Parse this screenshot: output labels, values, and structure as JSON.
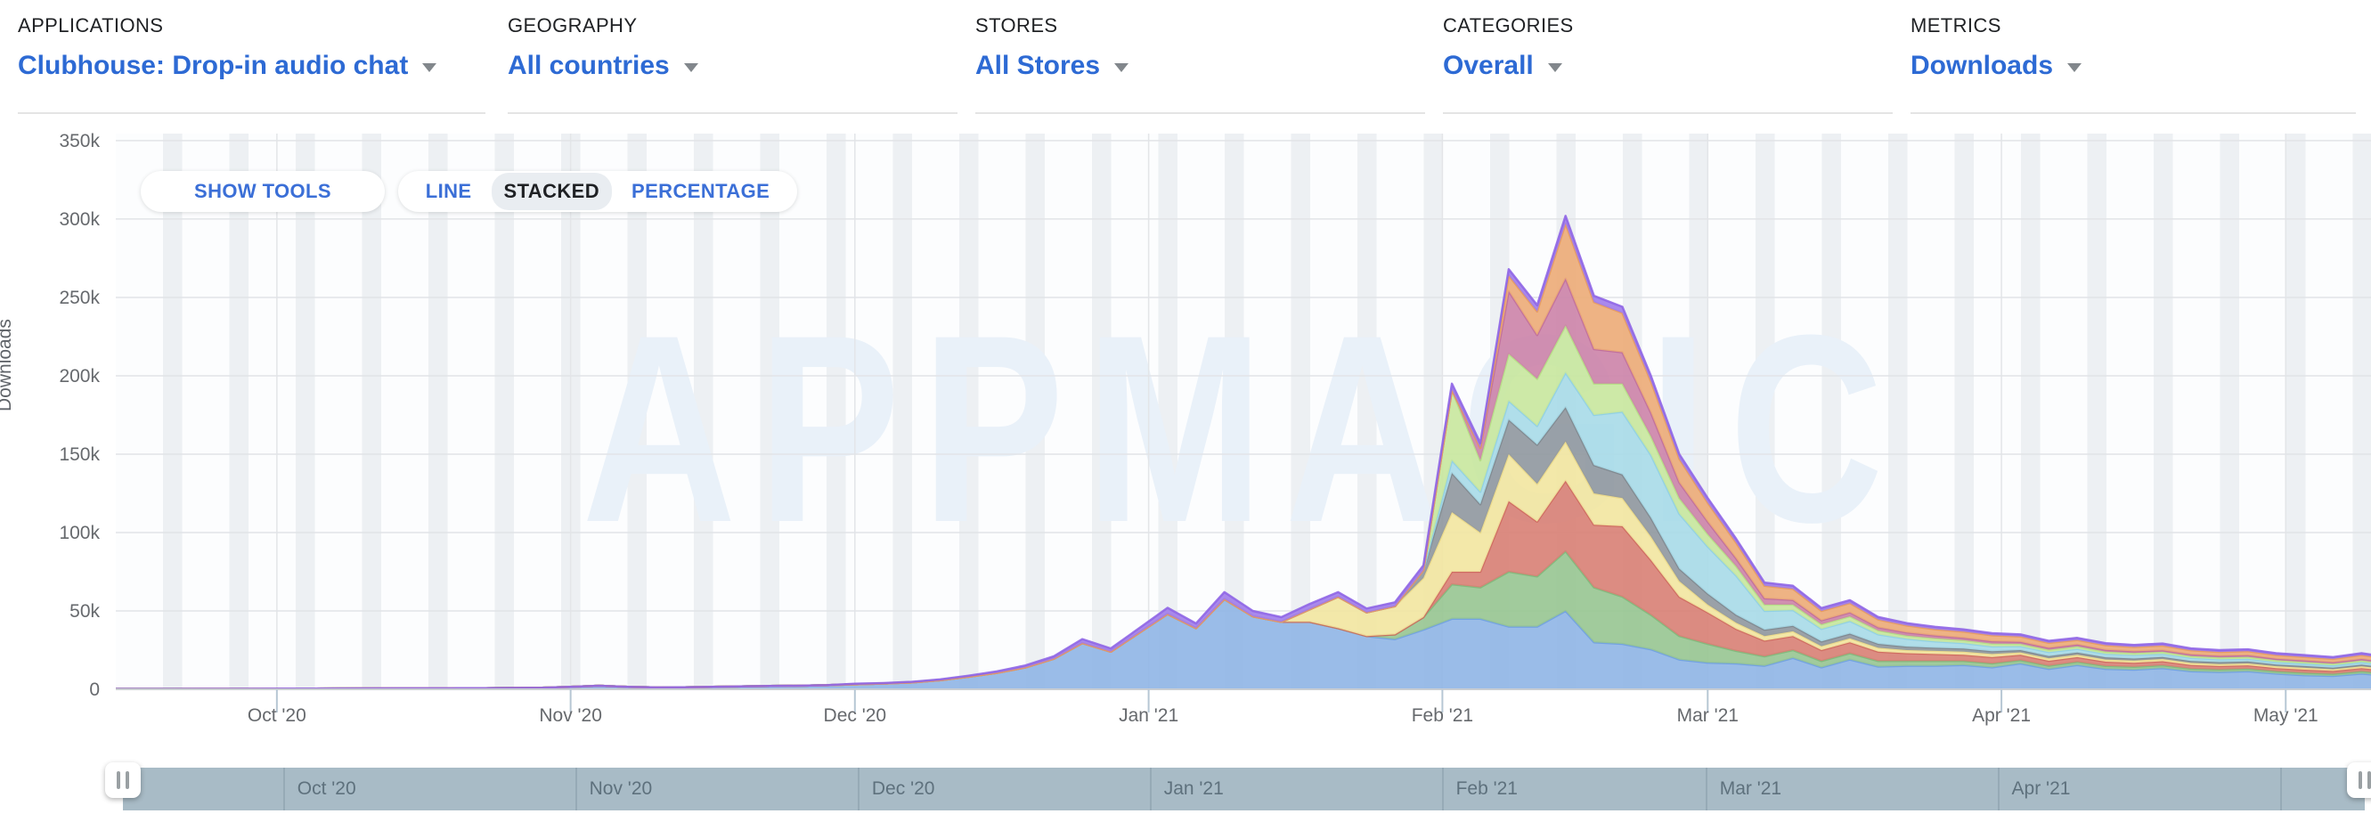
{
  "filters": [
    {
      "label": "APPLICATIONS",
      "value": "Clubhouse: Drop-in audio chat"
    },
    {
      "label": "GEOGRAPHY",
      "value": "All countries"
    },
    {
      "label": "STORES",
      "value": "All Stores"
    },
    {
      "label": "CATEGORIES",
      "value": "Overall"
    },
    {
      "label": "METRICS",
      "value": "Downloads"
    }
  ],
  "toolbar": {
    "show_tools_label": "SHOW TOOLS",
    "modes": [
      "LINE",
      "STACKED",
      "PERCENTAGE"
    ],
    "active_mode": "STACKED"
  },
  "watermark": "APPMAGIC",
  "chart_data": {
    "type": "area",
    "variant": "stacked",
    "ylabel": "Downloads",
    "y_ticks": [
      "0",
      "50k",
      "100k",
      "150k",
      "200k",
      "250k",
      "300k",
      "350k"
    ],
    "ylim": [
      0,
      354500
    ],
    "x_start": "2020-09-14",
    "x_step_days": 3,
    "n_points": 81,
    "x_ticks": [
      {
        "label": "Oct '20",
        "day": 17
      },
      {
        "label": "Nov '20",
        "day": 48
      },
      {
        "label": "Dec '20",
        "day": 78
      },
      {
        "label": "Jan '21",
        "day": 109
      },
      {
        "label": "Feb '21",
        "day": 140
      },
      {
        "label": "Mar '21",
        "day": 168
      },
      {
        "label": "Apr '21",
        "day": 199
      },
      {
        "label": "May '21",
        "day": 229
      }
    ],
    "values_unit": "thousands of downloads (estimated from pixels)",
    "grid": true,
    "legend": "none",
    "series": [
      {
        "name": "blue",
        "fill": "#8FB5E6",
        "line": "#6FA0E0",
        "values": [
          0.2,
          0.2,
          0.25,
          0.3,
          0.3,
          0.35,
          0.4,
          0.45,
          0.5,
          0.55,
          0.6,
          0.65,
          0.7,
          0.75,
          0.85,
          0.95,
          1.6,
          2.3,
          1.6,
          1.2,
          1.3,
          1.6,
          1.9,
          2.1,
          2.3,
          2.6,
          3.2,
          3.7,
          4.4,
          5.8,
          8,
          10.5,
          14,
          19.5,
          29.5,
          24,
          36,
          48,
          39,
          57.5,
          46.5,
          43,
          43,
          39,
          34,
          32,
          38,
          45,
          45,
          40,
          40,
          50,
          30,
          29,
          25.5,
          19,
          17,
          16.5,
          15,
          20,
          14,
          19,
          14.5,
          15,
          15,
          15.5,
          14,
          16.5,
          13,
          15.5,
          13,
          12.5,
          13.5,
          11.5,
          11,
          11.5,
          10,
          9,
          8.5,
          10,
          8.5
        ]
      },
      {
        "name": "green",
        "fill": "#97C591",
        "line": "#7FB87A",
        "values": [
          0,
          0,
          0,
          0,
          0,
          0,
          0,
          0,
          0,
          0,
          0,
          0,
          0,
          0,
          0,
          0,
          0,
          0,
          0,
          0,
          0,
          0,
          0,
          0,
          0,
          0,
          0,
          0,
          0,
          0,
          0,
          0,
          0,
          0,
          0,
          0,
          0,
          0,
          0,
          0,
          0,
          0,
          0,
          0,
          0,
          3,
          8,
          22,
          20,
          35,
          32,
          38,
          35,
          30,
          22,
          15,
          12,
          8,
          6,
          5,
          4,
          4,
          3.5,
          3,
          3,
          2.5,
          2.5,
          2,
          2,
          2,
          1.8,
          1.8,
          1.8,
          1.6,
          1.6,
          1.6,
          1.5,
          1.5,
          1.4,
          1.5,
          1.4
        ]
      },
      {
        "name": "red",
        "fill": "#D88074",
        "line": "#CE6A5E",
        "values": [
          0,
          0,
          0,
          0,
          0,
          0,
          0,
          0,
          0,
          0,
          0,
          0,
          0,
          0,
          0,
          0,
          0,
          0,
          0,
          0,
          0,
          0,
          0,
          0,
          0,
          0,
          0,
          0,
          0,
          0,
          0,
          0,
          0,
          0,
          0,
          0,
          0,
          0,
          0,
          0,
          0,
          0,
          0,
          0,
          0,
          0,
          0,
          8,
          10,
          45,
          35,
          45,
          40,
          45,
          35,
          25,
          20,
          14,
          10,
          9,
          7,
          7,
          6,
          5,
          4.5,
          4,
          4,
          3.5,
          3.2,
          3,
          2.8,
          2.6,
          2.6,
          2.4,
          2.2,
          2.2,
          2,
          2,
          1.8,
          2,
          1.8
        ]
      },
      {
        "name": "yellow",
        "fill": "#F2E5A0",
        "line": "#EBD98A",
        "values": [
          0,
          0,
          0,
          0,
          0,
          0,
          0,
          0,
          0,
          0,
          0,
          0,
          0,
          0,
          0,
          0,
          0,
          0,
          0,
          0,
          0,
          0,
          0,
          0,
          0,
          0,
          0,
          0,
          0,
          0,
          0,
          0,
          0,
          0,
          0,
          0,
          0,
          0,
          0,
          0,
          0,
          0,
          8,
          20,
          15,
          18,
          25,
          38,
          25,
          30,
          24,
          25,
          20,
          18,
          15,
          10,
          5,
          4,
          3,
          3,
          2.5,
          2.5,
          2.5,
          2,
          2,
          2,
          2,
          1.5,
          1.5,
          1.5,
          1.4,
          1.4,
          1.4,
          1.3,
          1.3,
          1.2,
          1.2,
          1.2,
          1.1,
          1.1,
          1
        ]
      },
      {
        "name": "gray",
        "fill": "#8F979E",
        "line": "#7E878E",
        "values": [
          0,
          0,
          0,
          0,
          0,
          0,
          0,
          0,
          0,
          0,
          0,
          0,
          0,
          0,
          0,
          0,
          0,
          0,
          0,
          0,
          0,
          0,
          0,
          0,
          0,
          0,
          0,
          0,
          0,
          0,
          0,
          0,
          0,
          0,
          0,
          0,
          0,
          0,
          0,
          0,
          0,
          0,
          0,
          0,
          0,
          0,
          5,
          25,
          18,
          22,
          25,
          22,
          18,
          15,
          12,
          8,
          7,
          5,
          4,
          3.5,
          3,
          3,
          2.5,
          2.2,
          2,
          2,
          1.8,
          1.5,
          1.5,
          1.4,
          1.4,
          1.3,
          1.3,
          1.2,
          1.2,
          1.2,
          1.1,
          1.1,
          1,
          1.1,
          1
        ]
      },
      {
        "name": "cyan",
        "fill": "#A7DAE8",
        "line": "#8FCFE3",
        "values": [
          0,
          0,
          0,
          0,
          0,
          0,
          0,
          0,
          0,
          0,
          0,
          0,
          0,
          0,
          0,
          0,
          0,
          0,
          0,
          0,
          0,
          0,
          0,
          0,
          0,
          0,
          0,
          0,
          0,
          0,
          0,
          0,
          0,
          0,
          0,
          0,
          0,
          0,
          0,
          0,
          0,
          0,
          0,
          0,
          0,
          0,
          0,
          8,
          8,
          12,
          12,
          22,
          32,
          40,
          40,
          35,
          30,
          25,
          12,
          10,
          8,
          8,
          6,
          5,
          4,
          3.5,
          3,
          2.5,
          2.5,
          2.4,
          2.2,
          2.2,
          2,
          2,
          1.8,
          1.8,
          1.6,
          1.6,
          1.5,
          1.6,
          1.5
        ]
      },
      {
        "name": "lightgreen",
        "fill": "#C8E79D",
        "line": "#B5DF85",
        "values": [
          0,
          0,
          0,
          0,
          0,
          0,
          0,
          0,
          0,
          0,
          0,
          0,
          0,
          0,
          0,
          0,
          0,
          0,
          0,
          0,
          0,
          0,
          0,
          0,
          0,
          0,
          0,
          0,
          0,
          0,
          0,
          0,
          0,
          0,
          0,
          0,
          0,
          0,
          0,
          0,
          0,
          0,
          0,
          0,
          0,
          0,
          0,
          45,
          20,
          30,
          30,
          30,
          20,
          18,
          12,
          10,
          8,
          6,
          4,
          3.5,
          3,
          3,
          2.5,
          2,
          2,
          1.8,
          1.8,
          1.5,
          1.5,
          1.5,
          1.4,
          1.3,
          1.3,
          1.2,
          1.2,
          1.2,
          1.1,
          1,
          1,
          1,
          1
        ]
      },
      {
        "name": "pink",
        "fill": "#CC83A8",
        "line": "#C06E9A",
        "values": [
          0,
          0,
          0,
          0,
          0,
          0,
          0,
          0,
          0,
          0,
          0,
          0,
          0,
          0,
          0,
          0,
          0,
          0,
          0,
          0,
          0,
          0,
          0,
          0,
          0,
          0,
          0,
          0,
          0,
          0,
          0,
          0,
          0,
          0,
          0,
          0,
          0,
          0,
          0,
          0,
          0,
          0,
          0,
          0,
          0,
          0,
          0,
          0,
          8,
          40,
          28,
          30,
          22,
          20,
          15,
          10,
          8,
          5,
          4,
          3,
          2.5,
          2.5,
          2,
          2,
          1.8,
          1.5,
          1.5,
          1.2,
          1.2,
          1.2,
          1.1,
          1.1,
          1,
          1,
          1,
          1,
          1,
          1,
          0.9,
          1,
          0.9
        ]
      },
      {
        "name": "orange",
        "fill": "#ECAB77",
        "line": "#E69A5F",
        "values": [
          0,
          0,
          0,
          0,
          0,
          0,
          0,
          0,
          0,
          0,
          0,
          0,
          0,
          0,
          0,
          0,
          0,
          0,
          0,
          0,
          0,
          0,
          0,
          0,
          0,
          0,
          0,
          0,
          0,
          0,
          0,
          0,
          0,
          0,
          0,
          0,
          0,
          0,
          0,
          0,
          0,
          0,
          0,
          0,
          0,
          0,
          0,
          0,
          0,
          10,
          15,
          35,
          30,
          25,
          20,
          15,
          12,
          10,
          8,
          7,
          6,
          6,
          5,
          4.5,
          4,
          4,
          3.8,
          3.5,
          3.2,
          3,
          3,
          2.8,
          3,
          2.6,
          2.5,
          2.6,
          2.3,
          2.2,
          2.2,
          2.5,
          2.2
        ]
      },
      {
        "name": "purple",
        "fill": "#A07CEB",
        "line": "#8F66E6",
        "values": [
          0,
          0,
          0,
          0,
          0,
          0,
          0,
          0,
          0,
          0,
          0,
          0,
          0,
          0,
          0,
          0,
          0,
          0,
          0,
          0,
          0,
          0,
          0,
          0,
          0,
          0,
          0.3,
          0.3,
          0.4,
          0.5,
          0.7,
          0.9,
          1.2,
          1.6,
          2.5,
          2,
          3,
          4,
          3,
          4.5,
          3.5,
          3,
          3.5,
          3,
          2.5,
          2.5,
          3,
          4,
          3,
          4,
          4,
          5,
          4,
          4,
          3.5,
          3,
          3,
          2.5,
          2,
          2,
          1.8,
          1.8,
          1.6,
          1.5,
          1.5,
          1.4,
          1.4,
          1.3,
          1.3,
          1.3,
          1.3,
          1.3,
          1.3,
          1.3,
          1.2,
          1.2,
          1.2,
          1.2,
          1.1,
          1.2,
          1.1
        ]
      }
    ]
  },
  "navigator": {
    "months": [
      {
        "label": "Oct '20",
        "day": 17
      },
      {
        "label": "Nov '20",
        "day": 48
      },
      {
        "label": "Dec '20",
        "day": 78
      },
      {
        "label": "Jan '21",
        "day": 109
      },
      {
        "label": "Feb '21",
        "day": 140
      },
      {
        "label": "Mar '21",
        "day": 168
      },
      {
        "label": "Apr '21",
        "day": 199
      },
      {
        "label": "",
        "day": 229
      }
    ],
    "total_days": 238
  }
}
